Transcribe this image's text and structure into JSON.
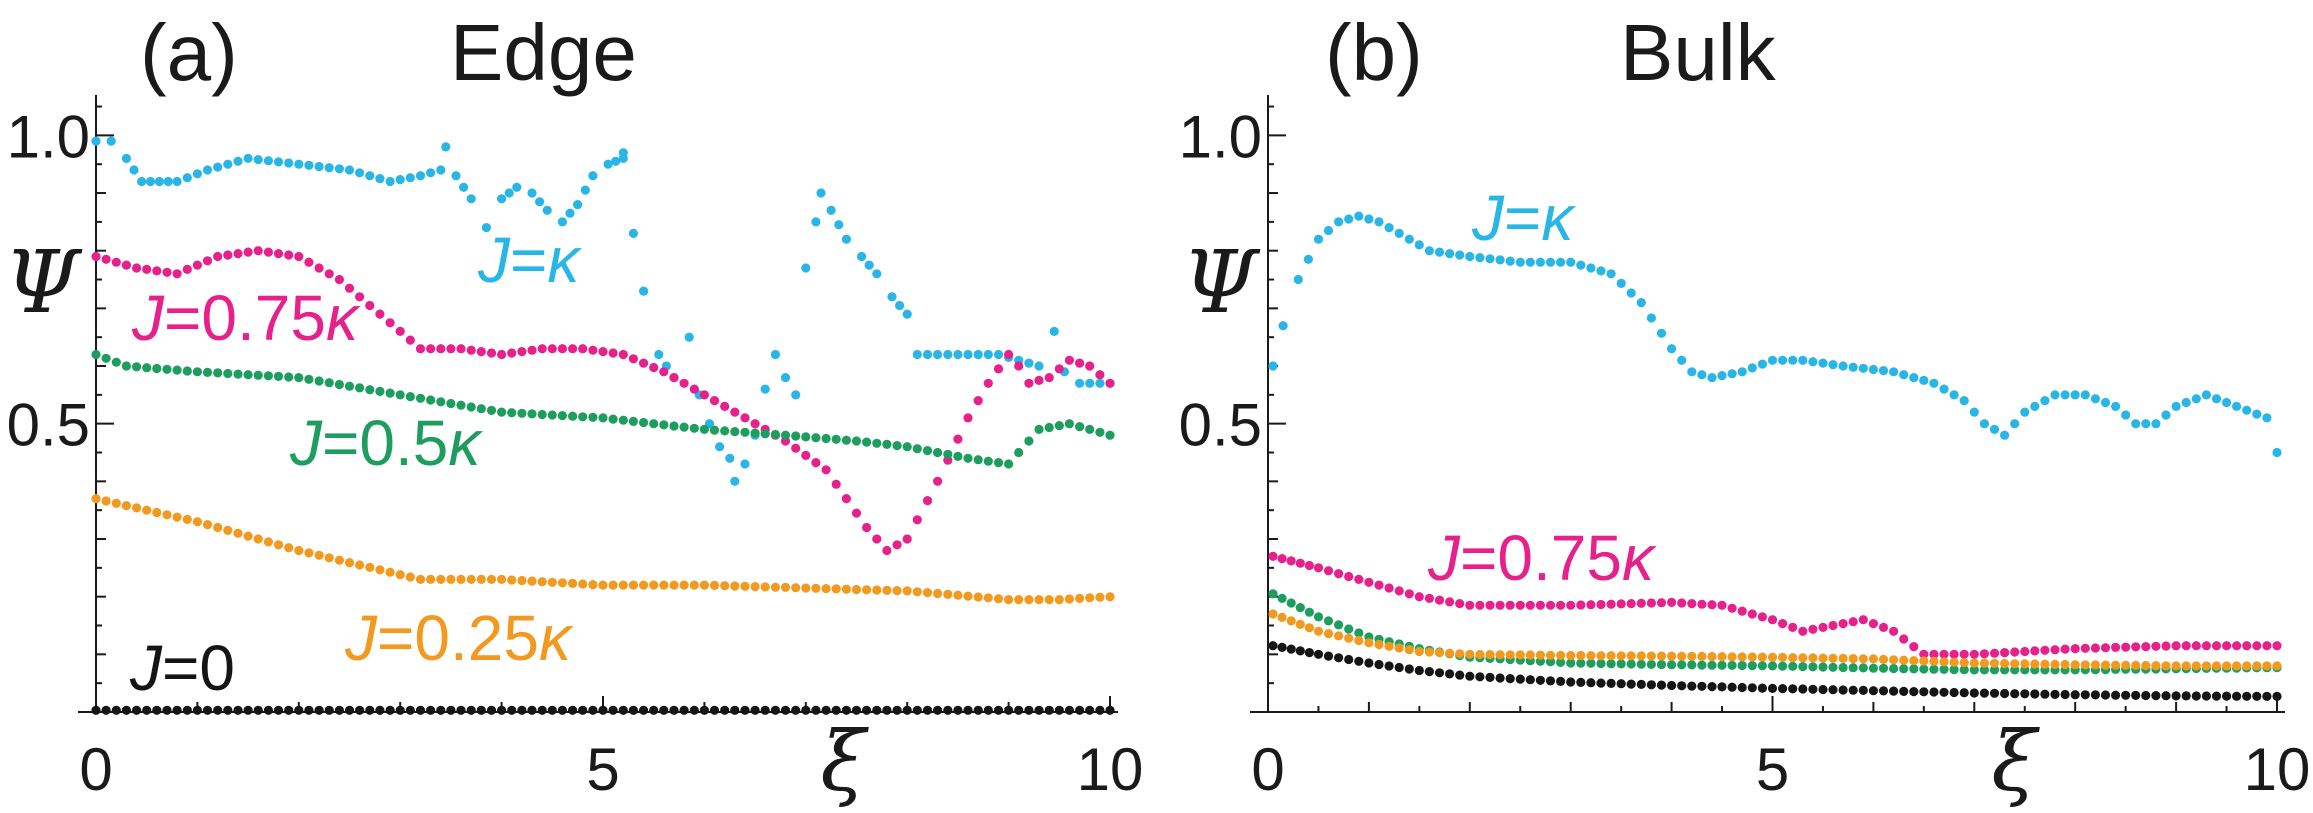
{
  "chart_data": [
    {
      "type": "scatter",
      "panel_label": "(a)",
      "title": "Edge",
      "xlabel": "ξ",
      "ylabel": "Ψ",
      "xlim": [
        0,
        10
      ],
      "ylim": [
        0,
        1.07
      ],
      "x_ticks": [
        0,
        5,
        10
      ],
      "y_ticks": [
        0.5,
        1.0
      ],
      "x_tick_labels": [
        "0",
        "5",
        "10"
      ],
      "y_tick_labels": [
        "0.5",
        "1.0"
      ],
      "series": [
        {
          "name": "J=κ",
          "prefix": "J",
          "suffix": "=κ",
          "color": "#29b6e6",
          "points": [
            [
              0,
              0.99
            ],
            [
              0.15,
              0.99
            ],
            [
              0.3,
              0.96
            ],
            [
              0.45,
              0.92
            ],
            [
              0.8,
              0.92
            ],
            [
              1.1,
              0.94
            ],
            [
              1.5,
              0.96
            ],
            [
              2.0,
              0.95
            ],
            [
              2.5,
              0.94
            ],
            [
              2.9,
              0.92
            ],
            [
              3.2,
              0.93
            ],
            [
              3.4,
              0.94
            ],
            [
              3.45,
              0.98
            ],
            [
              3.55,
              0.93
            ],
            [
              3.7,
              0.89
            ],
            [
              3.85,
              0.84
            ],
            [
              4.0,
              0.89
            ],
            [
              4.15,
              0.91
            ],
            [
              4.3,
              0.9
            ],
            [
              4.45,
              0.87
            ],
            [
              4.6,
              0.85
            ],
            [
              4.75,
              0.88
            ],
            [
              4.9,
              0.93
            ],
            [
              5.05,
              0.95
            ],
            [
              5.2,
              0.96
            ],
            [
              5.2,
              0.97
            ],
            [
              5.3,
              0.83
            ],
            [
              5.4,
              0.73
            ],
            [
              5.55,
              0.62
            ],
            [
              5.7,
              0.58
            ],
            [
              5.85,
              0.65
            ],
            [
              5.95,
              0.55
            ],
            [
              6.05,
              0.5
            ],
            [
              6.15,
              0.46
            ],
            [
              6.25,
              0.44
            ],
            [
              6.3,
              0.4
            ],
            [
              6.4,
              0.43
            ],
            [
              6.5,
              0.48
            ],
            [
              6.6,
              0.56
            ],
            [
              6.7,
              0.62
            ],
            [
              6.8,
              0.58
            ],
            [
              6.9,
              0.55
            ],
            [
              7.0,
              0.77
            ],
            [
              7.1,
              0.85
            ],
            [
              7.15,
              0.9
            ],
            [
              7.25,
              0.87
            ],
            [
              7.4,
              0.82
            ],
            [
              7.55,
              0.79
            ],
            [
              7.7,
              0.76
            ],
            [
              7.85,
              0.72
            ],
            [
              8.0,
              0.69
            ],
            [
              8.1,
              0.62
            ],
            [
              8.3,
              0.62
            ],
            [
              8.6,
              0.62
            ],
            [
              8.9,
              0.62
            ],
            [
              9.1,
              0.61
            ],
            [
              9.3,
              0.6
            ],
            [
              9.45,
              0.66
            ],
            [
              9.55,
              0.59
            ],
            [
              9.7,
              0.57
            ],
            [
              10.0,
              0.57
            ]
          ]
        },
        {
          "name": "J=0.75κ",
          "prefix": "J",
          "suffix": "=0.75κ",
          "color": "#e6218c",
          "points": [
            [
              0,
              0.79
            ],
            [
              0.4,
              0.77
            ],
            [
              0.8,
              0.76
            ],
            [
              1.2,
              0.79
            ],
            [
              1.6,
              0.8
            ],
            [
              2.0,
              0.79
            ],
            [
              2.4,
              0.75
            ],
            [
              2.8,
              0.69
            ],
            [
              3.2,
              0.63
            ],
            [
              3.6,
              0.63
            ],
            [
              4.0,
              0.62
            ],
            [
              4.4,
              0.63
            ],
            [
              4.8,
              0.63
            ],
            [
              5.2,
              0.62
            ],
            [
              5.6,
              0.59
            ],
            [
              6.0,
              0.55
            ],
            [
              6.4,
              0.51
            ],
            [
              6.8,
              0.47
            ],
            [
              7.2,
              0.42
            ],
            [
              7.6,
              0.32
            ],
            [
              7.8,
              0.28
            ],
            [
              8.0,
              0.3
            ],
            [
              8.3,
              0.4
            ],
            [
              8.6,
              0.51
            ],
            [
              8.8,
              0.57
            ],
            [
              9.0,
              0.62
            ],
            [
              9.1,
              0.6
            ],
            [
              9.2,
              0.57
            ],
            [
              9.4,
              0.58
            ],
            [
              9.6,
              0.61
            ],
            [
              9.8,
              0.6
            ],
            [
              10.0,
              0.57
            ]
          ]
        },
        {
          "name": "J=0.5κ",
          "prefix": "J",
          "suffix": "=0.5κ",
          "color": "#1e9e5e",
          "points": [
            [
              0,
              0.62
            ],
            [
              0.3,
              0.6
            ],
            [
              1,
              0.59
            ],
            [
              2,
              0.58
            ],
            [
              3,
              0.55
            ],
            [
              4,
              0.52
            ],
            [
              5,
              0.51
            ],
            [
              6,
              0.49
            ],
            [
              6.8,
              0.48
            ],
            [
              7.5,
              0.47
            ],
            [
              8,
              0.46
            ],
            [
              8.6,
              0.44
            ],
            [
              9.0,
              0.43
            ],
            [
              9.3,
              0.49
            ],
            [
              9.6,
              0.5
            ],
            [
              10,
              0.48
            ]
          ]
        },
        {
          "name": "J=0.25κ",
          "prefix": "J",
          "suffix": "=0.25κ",
          "color": "#f29a20",
          "points": [
            [
              0,
              0.37
            ],
            [
              0.5,
              0.35
            ],
            [
              1,
              0.33
            ],
            [
              2,
              0.28
            ],
            [
              3.2,
              0.23
            ],
            [
              3.6,
              0.23
            ],
            [
              4,
              0.23
            ],
            [
              5,
              0.22
            ],
            [
              6,
              0.22
            ],
            [
              7,
              0.215
            ],
            [
              8,
              0.21
            ],
            [
              9,
              0.195
            ],
            [
              9.5,
              0.195
            ],
            [
              10,
              0.2
            ]
          ]
        },
        {
          "name": "J=0",
          "prefix": "J",
          "suffix": "=0",
          "color": "#151515",
          "points": [
            [
              0,
              0.003
            ],
            [
              10,
              0.003
            ]
          ]
        }
      ]
    },
    {
      "type": "scatter",
      "panel_label": "(b)",
      "title": "Bulk",
      "xlabel": "ξ",
      "ylabel": "Ψ",
      "xlim": [
        0,
        10
      ],
      "ylim": [
        0,
        1.07
      ],
      "x_ticks": [
        0,
        5,
        10
      ],
      "y_ticks": [
        0.5,
        1.0
      ],
      "x_tick_labels": [
        "0",
        "5",
        "10"
      ],
      "y_tick_labels": [
        "0.5",
        "1.0"
      ],
      "series": [
        {
          "name": "J=κ",
          "prefix": "J",
          "suffix": "=κ",
          "color": "#29b6e6",
          "points": [
            [
              0.05,
              0.6
            ],
            [
              0.15,
              0.67
            ],
            [
              0.3,
              0.75
            ],
            [
              0.5,
              0.82
            ],
            [
              0.7,
              0.85
            ],
            [
              0.9,
              0.86
            ],
            [
              1.1,
              0.85
            ],
            [
              1.3,
              0.83
            ],
            [
              1.6,
              0.8
            ],
            [
              2.0,
              0.79
            ],
            [
              2.5,
              0.78
            ],
            [
              3.0,
              0.78
            ],
            [
              3.4,
              0.76
            ],
            [
              3.7,
              0.71
            ],
            [
              4.0,
              0.63
            ],
            [
              4.2,
              0.59
            ],
            [
              4.4,
              0.58
            ],
            [
              4.7,
              0.59
            ],
            [
              5.0,
              0.61
            ],
            [
              5.3,
              0.61
            ],
            [
              5.7,
              0.6
            ],
            [
              6.2,
              0.59
            ],
            [
              6.6,
              0.57
            ],
            [
              6.9,
              0.54
            ],
            [
              7.1,
              0.5
            ],
            [
              7.3,
              0.48
            ],
            [
              7.5,
              0.52
            ],
            [
              7.8,
              0.55
            ],
            [
              8.1,
              0.55
            ],
            [
              8.4,
              0.53
            ],
            [
              8.6,
              0.5
            ],
            [
              8.8,
              0.5
            ],
            [
              9.0,
              0.53
            ],
            [
              9.3,
              0.55
            ],
            [
              9.6,
              0.53
            ],
            [
              9.9,
              0.51
            ],
            [
              10.0,
              0.45
            ]
          ]
        },
        {
          "name": "J=0.75κ",
          "prefix": "J",
          "suffix": "=0.75κ",
          "color": "#e6218c",
          "points": [
            [
              0.05,
              0.27
            ],
            [
              0.5,
              0.25
            ],
            [
              1.0,
              0.225
            ],
            [
              1.5,
              0.2
            ],
            [
              2.0,
              0.185
            ],
            [
              3.0,
              0.185
            ],
            [
              4.0,
              0.19
            ],
            [
              4.5,
              0.185
            ],
            [
              5.0,
              0.16
            ],
            [
              5.3,
              0.14
            ],
            [
              5.6,
              0.15
            ],
            [
              5.9,
              0.16
            ],
            [
              6.2,
              0.14
            ],
            [
              6.5,
              0.1
            ],
            [
              7.0,
              0.1
            ],
            [
              8.0,
              0.11
            ],
            [
              9.0,
              0.115
            ],
            [
              10,
              0.115
            ]
          ]
        },
        {
          "name": "J=0.5κ",
          "prefix": "J",
          "suffix": "=0.5κ",
          "color": "#1e9e5e",
          "points": [
            [
              0.05,
              0.205
            ],
            [
              0.5,
              0.165
            ],
            [
              1.0,
              0.13
            ],
            [
              1.5,
              0.11
            ],
            [
              2.0,
              0.095
            ],
            [
              3.0,
              0.085
            ],
            [
              4.0,
              0.082
            ],
            [
              5.0,
              0.08
            ],
            [
              6.0,
              0.076
            ],
            [
              7.0,
              0.073
            ],
            [
              8.0,
              0.073
            ],
            [
              9.0,
              0.075
            ],
            [
              10,
              0.077
            ]
          ]
        },
        {
          "name": "J=0.25κ",
          "prefix": "J",
          "suffix": "=0.25κ",
          "color": "#f29a20",
          "points": [
            [
              0.05,
              0.17
            ],
            [
              0.5,
              0.14
            ],
            [
              1.0,
              0.12
            ],
            [
              1.5,
              0.105
            ],
            [
              2.0,
              0.1
            ],
            [
              3.0,
              0.098
            ],
            [
              4.0,
              0.097
            ],
            [
              5.0,
              0.095
            ],
            [
              6.0,
              0.092
            ],
            [
              7.0,
              0.085
            ],
            [
              8.0,
              0.082
            ],
            [
              9.0,
              0.08
            ],
            [
              10,
              0.08
            ]
          ]
        },
        {
          "name": "J=0",
          "prefix": "J",
          "suffix": "=0",
          "color": "#151515",
          "points": [
            [
              0.05,
              0.115
            ],
            [
              0.5,
              0.1
            ],
            [
              1.0,
              0.085
            ],
            [
              1.5,
              0.072
            ],
            [
              2.0,
              0.062
            ],
            [
              3.0,
              0.052
            ],
            [
              4.0,
              0.046
            ],
            [
              5.0,
              0.041
            ],
            [
              6.0,
              0.037
            ],
            [
              7.0,
              0.033
            ],
            [
              8.0,
              0.03
            ],
            [
              9.0,
              0.028
            ],
            [
              10,
              0.027
            ]
          ]
        }
      ]
    }
  ]
}
